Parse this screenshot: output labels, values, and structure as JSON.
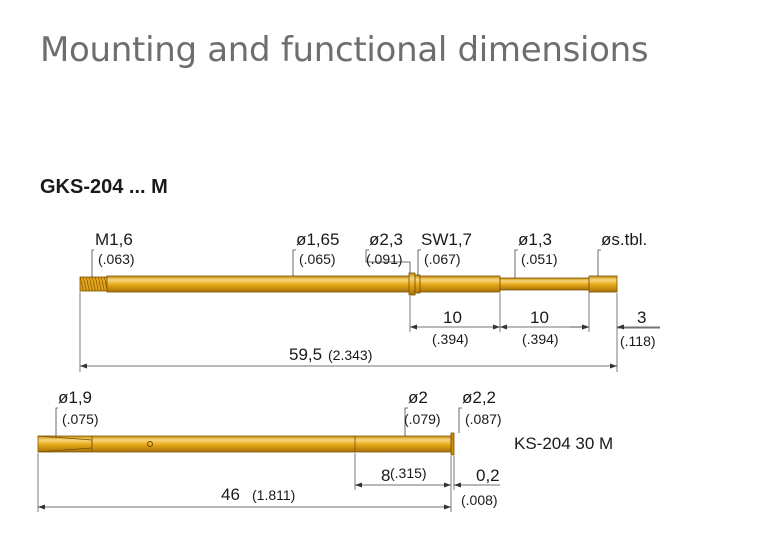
{
  "page_title": "Mounting and functional dimensions",
  "product_title": "GKS-204 ... M",
  "probe": {
    "callouts": [
      {
        "main": "M1,6",
        "sub": "(.063)"
      },
      {
        "main": "ø1,65",
        "sub": "(.065)"
      },
      {
        "main": "ø2,3",
        "sub": "(.091)"
      },
      {
        "main": "SW1,7",
        "sub": "(.067)"
      },
      {
        "main": "ø1,3",
        "sub": "(.051)"
      },
      {
        "main": "øs.tbl.",
        "sub": ""
      }
    ],
    "dims": [
      {
        "main": "10",
        "sub": "(.394)"
      },
      {
        "main": "10",
        "sub": "(.394)"
      },
      {
        "main": "3",
        "sub": "(.118)"
      }
    ],
    "total": {
      "main": "59,5",
      "sub": "(2.343)"
    }
  },
  "receptacle": {
    "label": "KS-204 30 M",
    "callouts": [
      {
        "main": "ø1,9",
        "sub": "(.075)"
      },
      {
        "main": "ø2",
        "sub": "(.079)"
      },
      {
        "main": "ø2,2",
        "sub": "(.087)"
      }
    ],
    "dims": [
      {
        "main": "8",
        "sub": "(.315)"
      },
      {
        "main": "0,2",
        "sub": "(.008)"
      }
    ],
    "total": {
      "main": "46",
      "sub": "(1.811)"
    }
  },
  "colors": {
    "body": "#e6a817",
    "body_dark": "#b57d08",
    "body_light": "#f7d77c",
    "line": "#444444"
  }
}
